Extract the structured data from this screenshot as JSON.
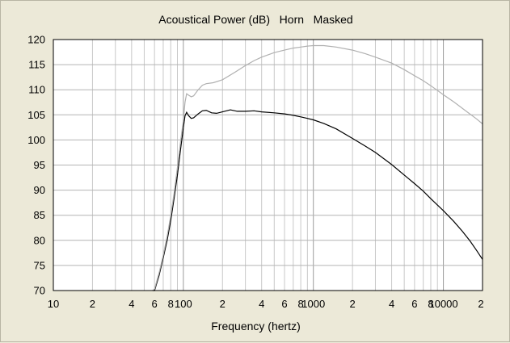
{
  "chart_data": {
    "type": "line",
    "title": "Acoustical Power (dB)   Horn   Masked",
    "xlabel": "Frequency (hertz)",
    "ylabel": "",
    "x_scale": "log",
    "xlim": [
      10,
      20000
    ],
    "ylim": [
      70,
      120
    ],
    "grid": true,
    "x_ticks": [
      {
        "value": 10,
        "label": "10"
      },
      {
        "value": 20,
        "label": "2"
      },
      {
        "value": 40,
        "label": "4"
      },
      {
        "value": 60,
        "label": "6"
      },
      {
        "value": 80,
        "label": "8"
      },
      {
        "value": 100,
        "label": "100"
      },
      {
        "value": 200,
        "label": "2"
      },
      {
        "value": 400,
        "label": "4"
      },
      {
        "value": 600,
        "label": "6"
      },
      {
        "value": 800,
        "label": "8"
      },
      {
        "value": 1000,
        "label": "1000"
      },
      {
        "value": 2000,
        "label": "2"
      },
      {
        "value": 4000,
        "label": "4"
      },
      {
        "value": 6000,
        "label": "6"
      },
      {
        "value": 8000,
        "label": "8"
      },
      {
        "value": 10000,
        "label": "10000"
      },
      {
        "value": 20000,
        "label": "2"
      }
    ],
    "y_ticks": [
      70,
      75,
      80,
      85,
      90,
      95,
      100,
      105,
      110,
      115,
      120
    ],
    "series": [
      {
        "color": "#000000",
        "points": [
          [
            58,
            69
          ],
          [
            60,
            70
          ],
          [
            65,
            73
          ],
          [
            70,
            76.5
          ],
          [
            75,
            80
          ],
          [
            80,
            84
          ],
          [
            85,
            88.5
          ],
          [
            90,
            93
          ],
          [
            95,
            98
          ],
          [
            100,
            102.5
          ],
          [
            103,
            104.8
          ],
          [
            106,
            105.5
          ],
          [
            110,
            104.8
          ],
          [
            115,
            104.3
          ],
          [
            120,
            104.4
          ],
          [
            130,
            105.2
          ],
          [
            140,
            105.8
          ],
          [
            150,
            105.9
          ],
          [
            165,
            105.4
          ],
          [
            180,
            105.3
          ],
          [
            200,
            105.6
          ],
          [
            230,
            106.0
          ],
          [
            260,
            105.7
          ],
          [
            300,
            105.7
          ],
          [
            350,
            105.8
          ],
          [
            400,
            105.6
          ],
          [
            500,
            105.4
          ],
          [
            600,
            105.2
          ],
          [
            700,
            104.9
          ],
          [
            800,
            104.6
          ],
          [
            900,
            104.3
          ],
          [
            1000,
            104.0
          ],
          [
            1200,
            103.3
          ],
          [
            1500,
            102.2
          ],
          [
            2000,
            100.3
          ],
          [
            2500,
            98.8
          ],
          [
            3000,
            97.5
          ],
          [
            4000,
            95.1
          ],
          [
            5000,
            93.0
          ],
          [
            6000,
            91.3
          ],
          [
            7000,
            89.8
          ],
          [
            8000,
            88.3
          ],
          [
            10000,
            85.9
          ],
          [
            12000,
            83.8
          ],
          [
            14000,
            81.8
          ],
          [
            16000,
            79.9
          ],
          [
            18000,
            78.0
          ],
          [
            20000,
            76.2
          ]
        ]
      },
      {
        "color": "#b0b0b0",
        "points": [
          [
            58,
            69
          ],
          [
            60,
            70.3
          ],
          [
            65,
            73.5
          ],
          [
            70,
            77
          ],
          [
            75,
            80.8
          ],
          [
            80,
            85
          ],
          [
            85,
            89.5
          ],
          [
            90,
            94.5
          ],
          [
            95,
            99.5
          ],
          [
            100,
            104
          ],
          [
            103,
            107.5
          ],
          [
            106,
            109.2
          ],
          [
            110,
            108.9
          ],
          [
            115,
            108.6
          ],
          [
            120,
            108.8
          ],
          [
            130,
            110.0
          ],
          [
            140,
            110.9
          ],
          [
            150,
            111.2
          ],
          [
            170,
            111.4
          ],
          [
            200,
            112.0
          ],
          [
            250,
            113.5
          ],
          [
            300,
            114.8
          ],
          [
            350,
            115.8
          ],
          [
            400,
            116.5
          ],
          [
            500,
            117.4
          ],
          [
            600,
            117.9
          ],
          [
            700,
            118.3
          ],
          [
            800,
            118.5
          ],
          [
            900,
            118.7
          ],
          [
            1000,
            118.8
          ],
          [
            1200,
            118.8
          ],
          [
            1500,
            118.5
          ],
          [
            2000,
            117.9
          ],
          [
            2500,
            117.2
          ],
          [
            3000,
            116.5
          ],
          [
            4000,
            115.3
          ],
          [
            5000,
            114.0
          ],
          [
            6000,
            112.8
          ],
          [
            7000,
            111.8
          ],
          [
            8000,
            110.8
          ],
          [
            10000,
            109.0
          ],
          [
            12000,
            107.6
          ],
          [
            15000,
            105.7
          ],
          [
            18000,
            104.2
          ],
          [
            20000,
            103.2
          ]
        ]
      }
    ]
  }
}
